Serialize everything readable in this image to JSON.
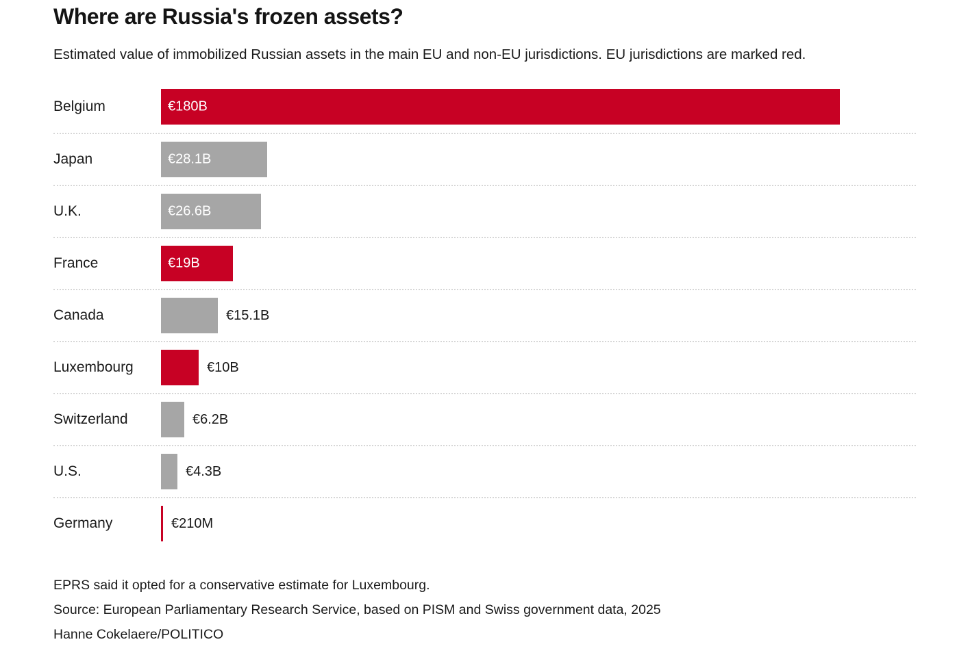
{
  "header": {
    "title": "Where are Russia's frozen assets?",
    "subtitle": "Estimated value of immobilized Russian assets in the main EU and non-EU jurisdictions. EU jurisdictions are marked red."
  },
  "chart_data": {
    "type": "bar",
    "orientation": "horizontal",
    "unit": "euros",
    "max_value": 180,
    "eu_color": "#c70124",
    "non_eu_color": "#a6a6a6",
    "inside_label_color": "#ffffff",
    "outside_label_color": "#1a1a1a",
    "categories": [
      "Belgium",
      "Japan",
      "U.K.",
      "France",
      "Canada",
      "Luxembourg",
      "Switzerland",
      "U.S.",
      "Germany"
    ],
    "values_billions": [
      180,
      28.1,
      26.6,
      19,
      15.1,
      10,
      6.2,
      4.3,
      0.21
    ],
    "rows": [
      {
        "country": "Belgium",
        "value_billions": 180,
        "label": "€180B",
        "eu": true,
        "label_position": "inside"
      },
      {
        "country": "Japan",
        "value_billions": 28.1,
        "label": "€28.1B",
        "eu": false,
        "label_position": "inside"
      },
      {
        "country": "U.K.",
        "value_billions": 26.6,
        "label": "€26.6B",
        "eu": false,
        "label_position": "inside"
      },
      {
        "country": "France",
        "value_billions": 19,
        "label": "€19B",
        "eu": true,
        "label_position": "inside"
      },
      {
        "country": "Canada",
        "value_billions": 15.1,
        "label": "€15.1B",
        "eu": false,
        "label_position": "outside"
      },
      {
        "country": "Luxembourg",
        "value_billions": 10,
        "label": "€10B",
        "eu": true,
        "label_position": "outside"
      },
      {
        "country": "Switzerland",
        "value_billions": 6.2,
        "label": "€6.2B",
        "eu": false,
        "label_position": "outside"
      },
      {
        "country": "U.S.",
        "value_billions": 4.3,
        "label": "€4.3B",
        "eu": false,
        "label_position": "outside"
      },
      {
        "country": "Germany",
        "value_billions": 0.21,
        "label": "€210M",
        "eu": true,
        "label_position": "outside"
      }
    ]
  },
  "footer": {
    "note": "EPRS said it opted for a conservative estimate for Luxembourg.",
    "source": "Source: European Parliamentary Research Service, based on PISM and Swiss government data, 2025",
    "byline": "Hanne Cokelaere/POLITICO"
  }
}
